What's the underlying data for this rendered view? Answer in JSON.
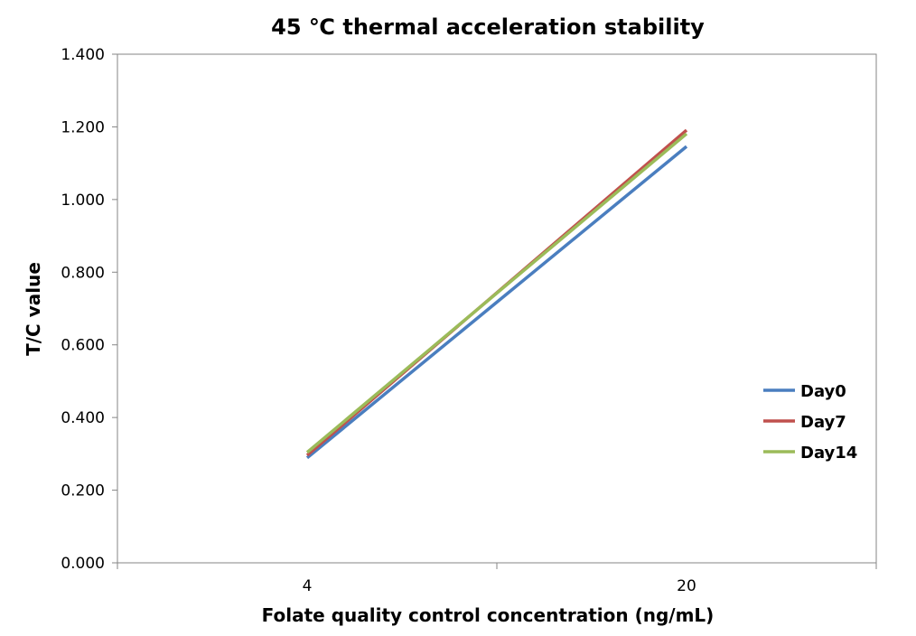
{
  "chart_data": {
    "type": "line",
    "title": "45 ℃ thermal acceleration stability",
    "xlabel": "Folate quality control concentration (ng/mL)",
    "ylabel": "T/C value",
    "categories": [
      "4",
      "20"
    ],
    "ylim": [
      0,
      1.4
    ],
    "yticks": [
      "0.000",
      "0.200",
      "0.400",
      "0.600",
      "0.800",
      "1.000",
      "1.200",
      "1.400"
    ],
    "grid": false,
    "legend_position": "right",
    "series": [
      {
        "name": "Day0",
        "color": "#4a7ebf",
        "values": [
          0.289,
          1.146
        ]
      },
      {
        "name": "Day7",
        "color": "#c0504d",
        "values": [
          0.296,
          1.191
        ]
      },
      {
        "name": "Day14",
        "color": "#9bbb59",
        "values": [
          0.304,
          1.181
        ]
      }
    ]
  }
}
